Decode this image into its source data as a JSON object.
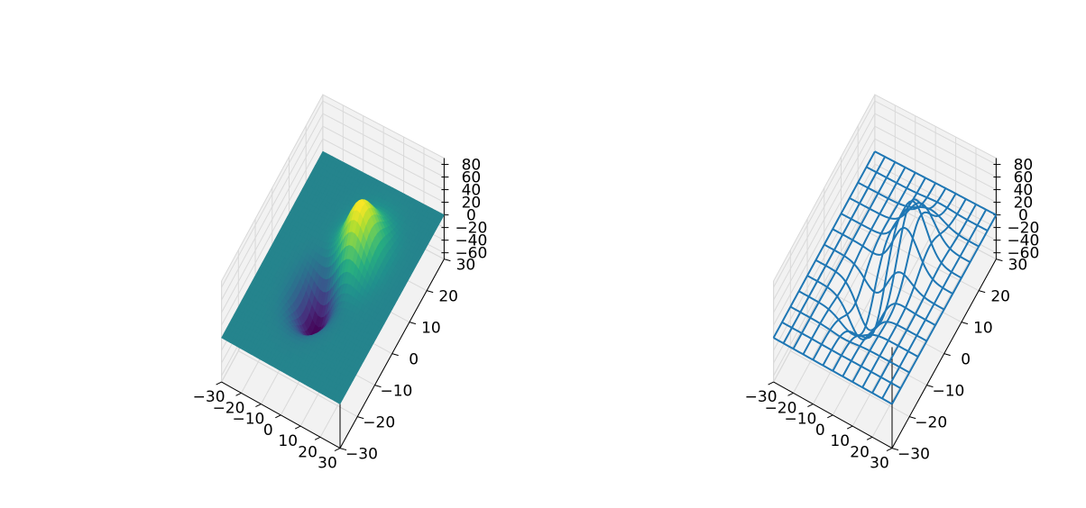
{
  "chart_data": [
    {
      "type": "surface",
      "style": "surface",
      "colormap": "viridis",
      "panel": "left",
      "xlim": [
        -30,
        30
      ],
      "ylim": [
        -30,
        30
      ],
      "zlim": [
        -70,
        90
      ],
      "xticks": [
        -30,
        -20,
        -10,
        0,
        10,
        20,
        30
      ],
      "yticks": [
        -30,
        -20,
        -10,
        0,
        10,
        20,
        30
      ],
      "zticks": [
        -60,
        -40,
        -20,
        0,
        20,
        40,
        60,
        80
      ],
      "xtick_labels": [
        "−30",
        "−20",
        "−10",
        "0",
        "10",
        "20",
        "30"
      ],
      "ytick_labels": [
        "−30",
        "−20",
        "−10",
        "0",
        "10",
        "20",
        "30"
      ],
      "ztick_labels": [
        "−60",
        "−40",
        "−20",
        "0",
        "20",
        "40",
        "60",
        "80"
      ],
      "z_max": 80,
      "z_min": -66,
      "grid": true
    },
    {
      "type": "surface",
      "style": "wireframe",
      "color": "#1f77b4",
      "panel": "right",
      "xlim": [
        -30,
        30
      ],
      "ylim": [
        -30,
        30
      ],
      "zlim": [
        -70,
        90
      ],
      "xticks": [
        -30,
        -20,
        -10,
        0,
        10,
        20,
        30
      ],
      "yticks": [
        -30,
        -20,
        -10,
        0,
        10,
        20,
        30
      ],
      "zticks": [
        -60,
        -40,
        -20,
        0,
        20,
        40,
        60,
        80
      ],
      "xtick_labels": [
        "−30",
        "−20",
        "−10",
        "0",
        "10",
        "20",
        "30"
      ],
      "ytick_labels": [
        "−30",
        "−20",
        "−10",
        "0",
        "10",
        "20",
        "30"
      ],
      "ztick_labels": [
        "−60",
        "−40",
        "−20",
        "0",
        "20",
        "40",
        "60",
        "80"
      ],
      "z_max": 80,
      "z_min": -66,
      "grid": true
    }
  ]
}
